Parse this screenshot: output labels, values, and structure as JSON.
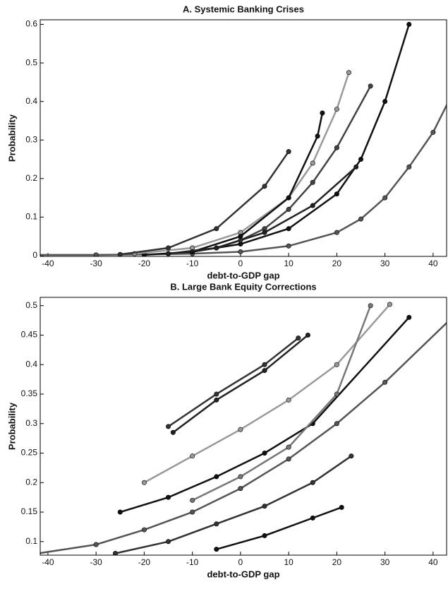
{
  "chart_data": [
    {
      "type": "line",
      "title": "A. Systemic Banking Crises",
      "x_label": "debt-to-GDP gap",
      "y_label": "Probability",
      "xlim": [
        -41.6,
        42.8
      ],
      "ylim": [
        -0.002,
        0.612
      ],
      "xticks": [
        -40,
        -30,
        -20,
        -10,
        0,
        10,
        20,
        30,
        40
      ],
      "yticks": [
        0,
        0.1,
        0.2,
        0.3,
        0.4,
        0.5,
        0.6
      ],
      "series": [
        {
          "color": "#555555",
          "x": [
            -42,
            -30,
            -20,
            -10,
            0,
            10,
            20,
            25,
            30,
            35,
            40,
            44
          ],
          "values": [
            0.002,
            0.002,
            0.003,
            0.005,
            0.01,
            0.025,
            0.06,
            0.095,
            0.15,
            0.23,
            0.32,
            0.42
          ]
        },
        {
          "color": "#111111",
          "x": [
            -20,
            -10,
            0,
            10,
            20,
            25,
            30,
            35
          ],
          "values": [
            0.002,
            0.01,
            0.03,
            0.07,
            0.16,
            0.25,
            0.4,
            0.6
          ]
        },
        {
          "color": "#444444",
          "x": [
            -15,
            -5,
            0,
            5,
            10,
            15,
            20,
            27
          ],
          "values": [
            0.005,
            0.02,
            0.04,
            0.07,
            0.12,
            0.19,
            0.28,
            0.44
          ]
        },
        {
          "color": "#999999",
          "x": [
            -22,
            -10,
            0,
            10,
            15,
            20,
            22.5
          ],
          "values": [
            0.005,
            0.02,
            0.06,
            0.15,
            0.24,
            0.38,
            0.475
          ]
        },
        {
          "color": "#333333",
          "x": [
            -25,
            -15,
            -5,
            5,
            10
          ],
          "values": [
            0.003,
            0.02,
            0.07,
            0.18,
            0.27
          ]
        },
        {
          "color": "#111111",
          "x": [
            -10,
            0,
            10,
            16,
            17
          ],
          "values": [
            0.01,
            0.05,
            0.15,
            0.31,
            0.37
          ]
        },
        {
          "color": "#222222",
          "x": [
            -15,
            -5,
            5,
            15,
            24
          ],
          "values": [
            0.005,
            0.02,
            0.06,
            0.13,
            0.23
          ]
        }
      ]
    },
    {
      "type": "line",
      "title": "B. Large Bank Equity Corrections",
      "x_label": "debt-to-GDP gap",
      "y_label": "Probability",
      "xlim": [
        -41.6,
        42.8
      ],
      "ylim": [
        0.077,
        0.514
      ],
      "xticks": [
        -40,
        -30,
        -20,
        -10,
        0,
        10,
        20,
        30,
        40
      ],
      "yticks": [
        0.1,
        0.15,
        0.2,
        0.25,
        0.3,
        0.35,
        0.4,
        0.45,
        0.5
      ],
      "series": [
        {
          "color": "#555555",
          "x": [
            -42,
            -30,
            -20,
            -10,
            0,
            10,
            20,
            30,
            44
          ],
          "values": [
            0.08,
            0.095,
            0.12,
            0.15,
            0.19,
            0.24,
            0.3,
            0.37,
            0.48
          ]
        },
        {
          "color": "#333333",
          "x": [
            -15,
            -5,
            5,
            12
          ],
          "values": [
            0.295,
            0.35,
            0.4,
            0.445
          ]
        },
        {
          "color": "#999999",
          "x": [
            -20,
            -10,
            0,
            10,
            20,
            31
          ],
          "values": [
            0.2,
            0.245,
            0.29,
            0.34,
            0.4,
            0.502
          ]
        },
        {
          "color": "#111111",
          "x": [
            -5,
            5,
            15,
            21
          ],
          "values": [
            0.087,
            0.11,
            0.14,
            0.158
          ]
        },
        {
          "color": "#333333",
          "x": [
            -26,
            -15,
            -5,
            5,
            15,
            23
          ],
          "values": [
            0.08,
            0.1,
            0.13,
            0.16,
            0.2,
            0.245
          ]
        },
        {
          "color": "#111111",
          "x": [
            -25,
            -15,
            -5,
            5,
            15,
            35
          ],
          "values": [
            0.15,
            0.175,
            0.21,
            0.25,
            0.3,
            0.48
          ]
        },
        {
          "color": "#777777",
          "x": [
            -10,
            0,
            10,
            20,
            27
          ],
          "values": [
            0.17,
            0.21,
            0.26,
            0.35,
            0.5
          ]
        },
        {
          "color": "#222222",
          "x": [
            -14,
            -5,
            5,
            14
          ],
          "values": [
            0.285,
            0.34,
            0.39,
            0.45
          ]
        }
      ]
    }
  ]
}
